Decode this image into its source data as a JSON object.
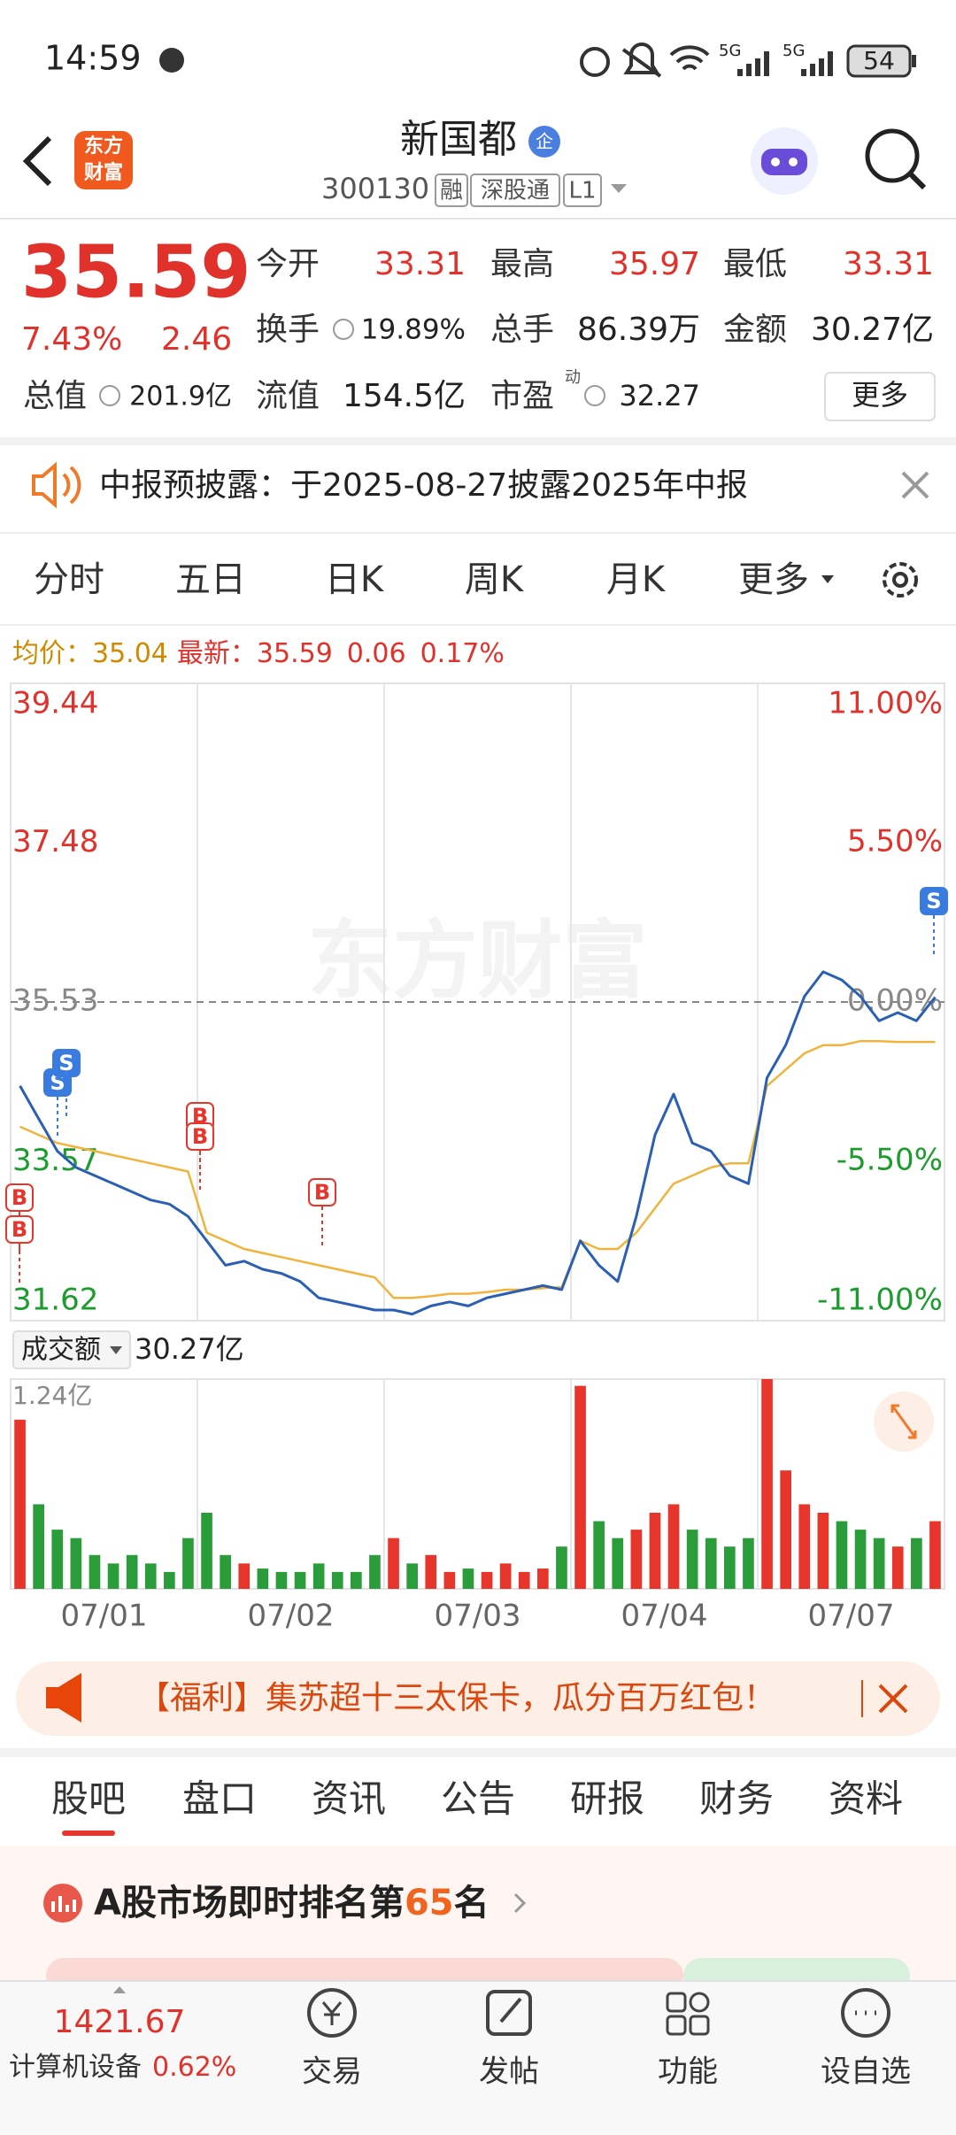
{
  "status_bar": {
    "time": "14:59",
    "network": [
      "5G",
      "5G"
    ],
    "battery": "54"
  },
  "header": {
    "logo": [
      "东方",
      "财富"
    ],
    "title": "新国都",
    "badge": "企",
    "code": "300130",
    "tags": [
      "融",
      "深股通",
      "L1"
    ]
  },
  "quote": {
    "price": "35.59",
    "change_pct": "7.43%",
    "change": "2.46",
    "fields": [
      {
        "label": "今开",
        "value": "33.31"
      },
      {
        "label": "最高",
        "value": "35.97"
      },
      {
        "label": "最低",
        "value": "33.31"
      },
      {
        "label": "换手",
        "value": "19.89%"
      },
      {
        "label": "总手",
        "value": "86.39万"
      },
      {
        "label": "金额",
        "value": "30.27亿"
      }
    ],
    "total_value": {
      "label": "总值",
      "value": "201.9亿"
    },
    "float_value": {
      "label": "流值",
      "value": "154.5亿"
    },
    "pe": {
      "label": "市盈",
      "sup": "动",
      "value": "32.27"
    },
    "more": "更多"
  },
  "notice": "中报预披露：于2025-08-27披露2025年中报",
  "tabs": {
    "items": [
      "分时",
      "五日",
      "日K",
      "周K",
      "月K",
      "更多"
    ],
    "active": 1
  },
  "info": {
    "avg_label": "均价：",
    "avg": "35.04",
    "last_label": "最新：",
    "last": "35.59",
    "change": "0.06",
    "change_pct": "0.17%"
  },
  "chart_data": [
    {
      "type": "line",
      "watermark": "东方财富",
      "ylim": [
        31.62,
        39.44
      ],
      "yticks": [
        31.62,
        33.57,
        35.53,
        37.48,
        39.44
      ],
      "y2lim": [
        -11,
        11
      ],
      "y2ticks": [
        {
          "value": -11,
          "label": "-11.00%"
        },
        {
          "value": -5.5,
          "label": "-5.50%"
        },
        {
          "value": 0,
          "label": "0.00%"
        },
        {
          "value": 5.5,
          "label": "5.50%"
        },
        {
          "value": 11,
          "label": "11.00%"
        }
      ],
      "grid": true,
      "series": [
        {
          "color": "#2b5fb4",
          "values": [
            34.5,
            34.1,
            33.7,
            33.5,
            33.4,
            33.3,
            33.2,
            33.1,
            33.05,
            32.9,
            32.6,
            32.3,
            32.35,
            32.25,
            32.2,
            32.1,
            31.9,
            31.85,
            31.8,
            31.75,
            31.75,
            31.7,
            31.8,
            31.85,
            31.8,
            31.9,
            31.95,
            32.0,
            32.05,
            32.0,
            32.6,
            32.3,
            32.1,
            32.9,
            33.9,
            34.4,
            33.8,
            33.7,
            33.4,
            33.3,
            34.6,
            35.0,
            35.6,
            35.9,
            35.8,
            35.6,
            35.3,
            35.4,
            35.3,
            35.59
          ]
        },
        {
          "color": "#f0b43c",
          "values": [
            34.0,
            33.9,
            33.8,
            33.75,
            33.7,
            33.65,
            33.6,
            33.55,
            33.5,
            33.45,
            32.7,
            32.6,
            32.5,
            32.45,
            32.4,
            32.35,
            32.3,
            32.25,
            32.2,
            32.15,
            31.9,
            31.9,
            31.92,
            31.95,
            31.95,
            31.97,
            32.0,
            32.0,
            32.02,
            32.03,
            32.6,
            32.5,
            32.5,
            32.7,
            33.0,
            33.3,
            33.4,
            33.5,
            33.55,
            33.55,
            34.5,
            34.7,
            34.9,
            35.0,
            35.0,
            35.05,
            35.05,
            35.04,
            35.04,
            35.04
          ]
        }
      ],
      "markers": [
        "B",
        "B",
        "B",
        "B",
        "B",
        "S",
        "S",
        "S"
      ]
    },
    {
      "type": "bar",
      "day_labels": [
        "07/01",
        "07/02",
        "07/03",
        "07/04",
        "07/07"
      ],
      "values": [
        1.0,
        0.5,
        0.35,
        0.3,
        0.2,
        0.15,
        0.2,
        0.15,
        0.1,
        0.3,
        0.45,
        0.2,
        0.15,
        0.12,
        0.1,
        0.1,
        0.15,
        0.1,
        0.1,
        0.2,
        0.3,
        0.15,
        0.2,
        0.1,
        0.12,
        0.1,
        0.15,
        0.1,
        0.12,
        0.25,
        1.2,
        0.4,
        0.3,
        0.35,
        0.45,
        0.5,
        0.35,
        0.3,
        0.25,
        0.3,
        1.24,
        0.7,
        0.5,
        0.45,
        0.4,
        0.35,
        0.3,
        0.25,
        0.3,
        0.4
      ],
      "ylim": [
        0,
        1.24
      ],
      "yticks": [
        {
          "value": 1.24,
          "label": "1.24亿"
        }
      ],
      "colors": {
        "up": "#e8352b",
        "down": "#2a9d3a"
      }
    }
  ],
  "volume_header": {
    "label": "成交额",
    "value": "30.27亿"
  },
  "banner": "【福利】集苏超十三太保卡，瓜分百万红包！",
  "sections": {
    "items": [
      "股吧",
      "盘口",
      "资讯",
      "公告",
      "研报",
      "财务",
      "资料"
    ],
    "active": 0
  },
  "rank": {
    "prefix": "A股市场即时排名第",
    "value": "65",
    "suffix": "名"
  },
  "bottom_bar": {
    "index": "1421.67",
    "sector": "计算机设备",
    "sector_change": "0.62%",
    "actions": [
      "交易",
      "发帖",
      "功能",
      "设自选"
    ]
  }
}
